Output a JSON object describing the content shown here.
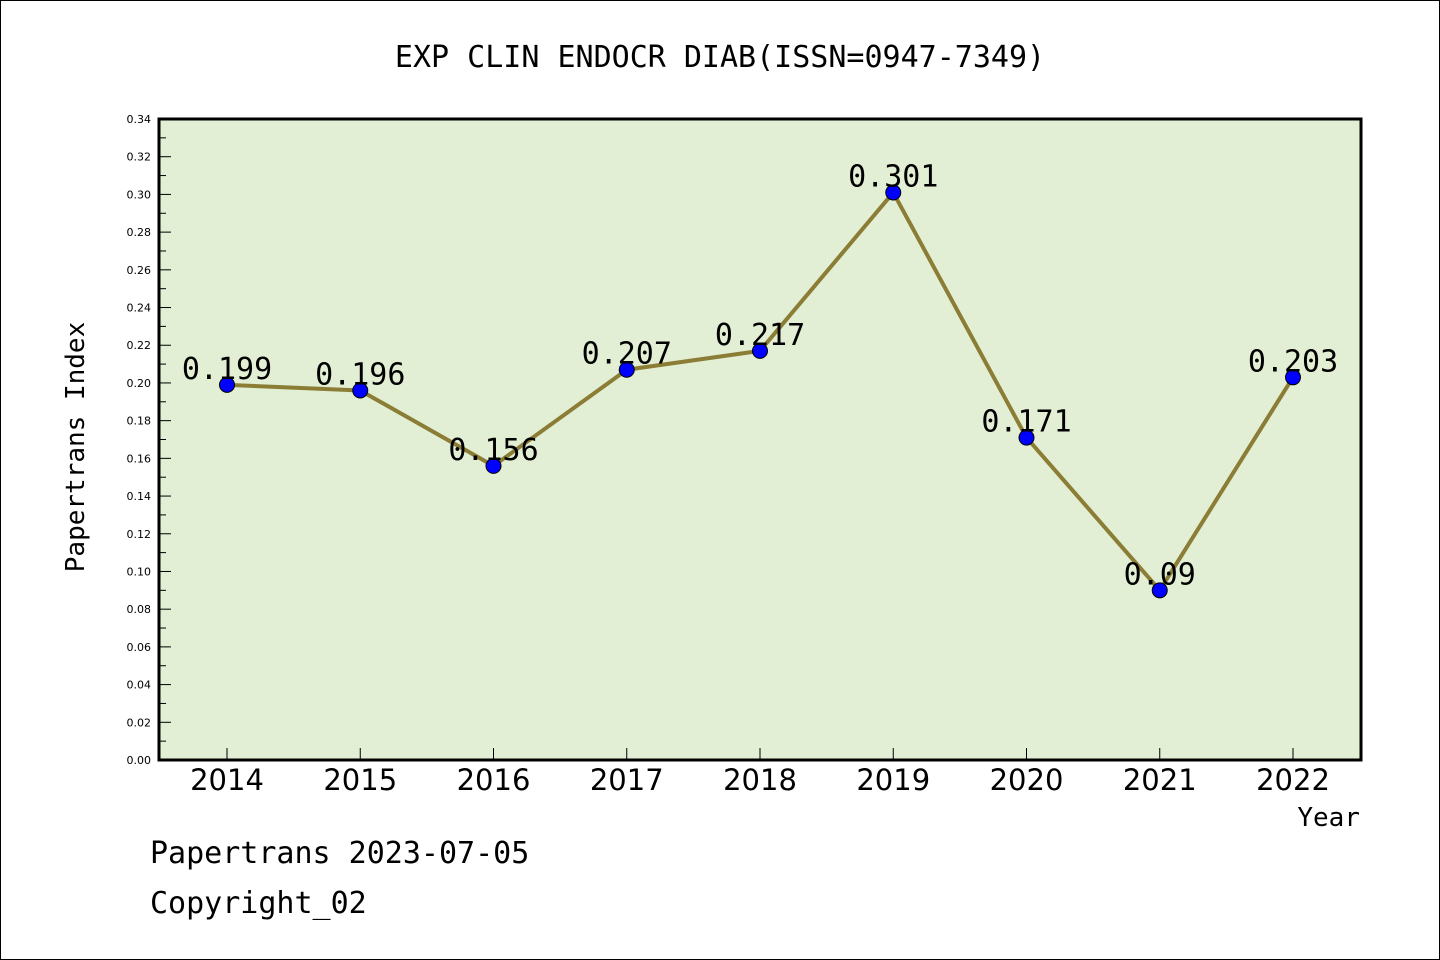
{
  "chart_data": {
    "type": "line",
    "title": "EXP CLIN ENDOCR DIAB(ISSN=0947-7349)",
    "xlabel": "Year",
    "ylabel": "Papertrans Index",
    "categories": [
      "2014",
      "2015",
      "2016",
      "2017",
      "2018",
      "2019",
      "2020",
      "2021",
      "2022"
    ],
    "values": [
      0.199,
      0.196,
      0.156,
      0.207,
      0.217,
      0.301,
      0.171,
      0.09,
      0.203
    ],
    "data_labels": [
      "0.199",
      "0.196",
      "0.156",
      "0.207",
      "0.217",
      "0.301",
      "0.171",
      "0.09",
      "0.203"
    ],
    "ylim": [
      0,
      0.34
    ],
    "yticks": [
      "0.00",
      "0.02",
      "0.04",
      "0.06",
      "0.08",
      "0.10",
      "0.12",
      "0.14",
      "0.16",
      "0.18",
      "0.20",
      "0.22",
      "0.24",
      "0.26",
      "0.28",
      "0.30",
      "0.32",
      "0.34"
    ],
    "grid": false,
    "legend": "none",
    "colors": {
      "plot_background": "#e2efd4",
      "line": "#8b7d35",
      "marker": "#0000ff"
    }
  },
  "footer": {
    "line1": "Papertrans 2023-07-05",
    "line2": "Copyright_02"
  }
}
